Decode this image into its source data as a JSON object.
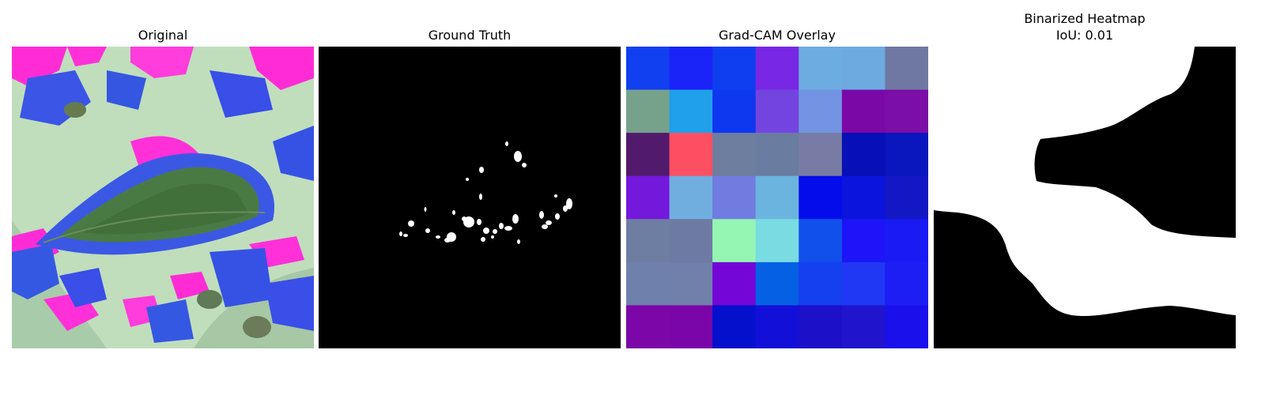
{
  "panels": [
    {
      "title": "Original"
    },
    {
      "title": "Ground Truth"
    },
    {
      "title": "Grad-CAM Overlay"
    },
    {
      "title": "Binarized Heatmap",
      "subtitle": "IoU: 0.01"
    }
  ],
  "colors": {
    "background": "#ffffff",
    "gt_background": "#000000",
    "gt_blob": "#ffffff",
    "heatmap_grid": [
      [
        "#1140f0",
        "#1a24f8",
        "#0f3ef0",
        "#7828e4",
        "#6cace0",
        "#6caae0",
        "#6e78a2"
      ],
      [
        "#76a28c",
        "#20a0e8",
        "#0e38f0",
        "#7444e0",
        "#7294e2",
        "#7a08a6",
        "#7c0ea8"
      ],
      [
        "#521a6c",
        "#fc5062",
        "#6e7e9e",
        "#6a7ca0",
        "#787ca4",
        "#0610b6",
        "#0a16be"
      ],
      [
        "#7418dc",
        "#70aee0",
        "#707ce0",
        "#6cb4e0",
        "#040cec",
        "#0a14dc",
        "#1418c4"
      ],
      [
        "#6e7ea2",
        "#6c7aa4",
        "#94f6b2",
        "#78dce2",
        "#1250ec",
        "#1e14f8",
        "#1a1af4"
      ],
      [
        "#7080ac",
        "#7080aa",
        "#7406d8",
        "#0660e4",
        "#1440f0",
        "#2038f4",
        "#1c1ef4"
      ],
      [
        "#7c06a8",
        "#7a06aa",
        "#0410cc",
        "#1210d8",
        "#1c10c8",
        "#2014cc",
        "#1a10ec"
      ]
    ]
  }
}
